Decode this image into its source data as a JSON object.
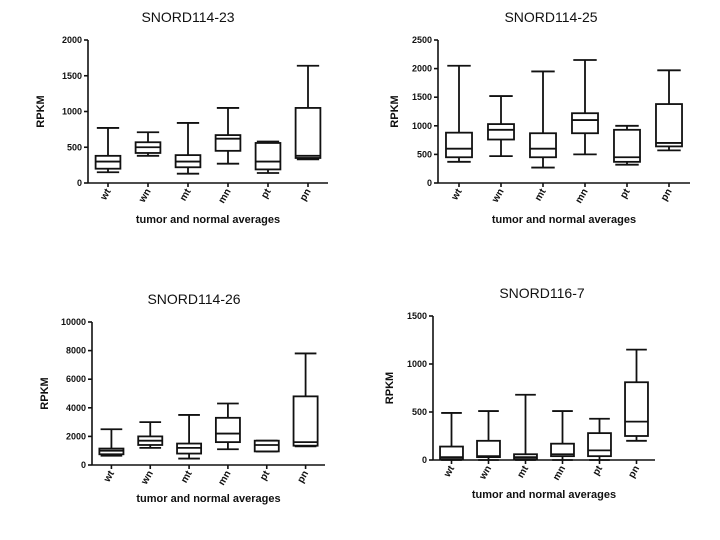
{
  "chart_data": [
    {
      "type": "boxplot",
      "title": "SNORD114-23",
      "xlabel": "tumor and normal averages",
      "ylabel": "RPKM",
      "ylim": [
        0,
        2000
      ],
      "yticks": [
        0,
        500,
        1000,
        1500,
        2000
      ],
      "categories": [
        "wt",
        "wn",
        "mt",
        "mn",
        "pt",
        "pn"
      ],
      "boxes": [
        {
          "min": 150,
          "q1": 200,
          "median": 300,
          "q3": 380,
          "max": 770
        },
        {
          "min": 380,
          "q1": 420,
          "median": 500,
          "q3": 570,
          "max": 710
        },
        {
          "min": 130,
          "q1": 220,
          "median": 300,
          "q3": 390,
          "max": 840
        },
        {
          "min": 270,
          "q1": 450,
          "median": 620,
          "q3": 670,
          "max": 1050
        },
        {
          "min": 140,
          "q1": 190,
          "median": 300,
          "q3": 560,
          "max": 580
        },
        {
          "min": 330,
          "q1": 350,
          "median": 380,
          "q3": 1050,
          "max": 1640
        }
      ]
    },
    {
      "type": "boxplot",
      "title": "SNORD114-25",
      "xlabel": "tumor and normal averages",
      "ylabel": "RPKM",
      "ylim": [
        0,
        2500
      ],
      "yticks": [
        0,
        500,
        1000,
        1500,
        2000,
        2500
      ],
      "categories": [
        "wt",
        "wn",
        "mt",
        "mn",
        "pt",
        "pn"
      ],
      "boxes": [
        {
          "min": 370,
          "q1": 450,
          "median": 600,
          "q3": 880,
          "max": 2050
        },
        {
          "min": 470,
          "q1": 760,
          "median": 930,
          "q3": 1030,
          "max": 1520
        },
        {
          "min": 270,
          "q1": 450,
          "median": 600,
          "q3": 870,
          "max": 1950
        },
        {
          "min": 500,
          "q1": 870,
          "median": 1100,
          "q3": 1220,
          "max": 2150
        },
        {
          "min": 320,
          "q1": 370,
          "median": 450,
          "q3": 930,
          "max": 1000
        },
        {
          "min": 570,
          "q1": 640,
          "median": 700,
          "q3": 1380,
          "max": 1970
        }
      ]
    },
    {
      "type": "boxplot",
      "title": "SNORD114-26",
      "xlabel": "tumor and normal averages",
      "ylabel": "RPKM",
      "ylim": [
        0,
        10000
      ],
      "yticks": [
        0,
        2000,
        4000,
        6000,
        8000,
        10000
      ],
      "categories": [
        "wt",
        "wn",
        "mt",
        "mn",
        "pt",
        "pn"
      ],
      "boxes": [
        {
          "min": 650,
          "q1": 750,
          "median": 1000,
          "q3": 1150,
          "max": 2500
        },
        {
          "min": 1200,
          "q1": 1400,
          "median": 1700,
          "q3": 2000,
          "max": 3000
        },
        {
          "min": 450,
          "q1": 800,
          "median": 1200,
          "q3": 1500,
          "max": 3500
        },
        {
          "min": 1100,
          "q1": 1600,
          "median": 2200,
          "q3": 3300,
          "max": 4300
        },
        {
          "min": 950,
          "q1": 950,
          "median": 1400,
          "q3": 1700,
          "max": 1700
        },
        {
          "min": 1300,
          "q1": 1350,
          "median": 1600,
          "q3": 4800,
          "max": 7800
        }
      ]
    },
    {
      "type": "boxplot",
      "title": "SNORD116-7",
      "xlabel": "tumor and normal averages",
      "ylabel": "RPKM",
      "ylim": [
        0,
        1500
      ],
      "yticks": [
        0,
        500,
        1000,
        1500
      ],
      "categories": [
        "wt",
        "wn",
        "mt",
        "mn",
        "pt",
        "pn"
      ],
      "boxes": [
        {
          "min": 0,
          "q1": 10,
          "median": 30,
          "q3": 140,
          "max": 490
        },
        {
          "min": 0,
          "q1": 30,
          "median": 40,
          "q3": 200,
          "max": 510
        },
        {
          "min": 0,
          "q1": 10,
          "median": 30,
          "q3": 60,
          "max": 680
        },
        {
          "min": 0,
          "q1": 40,
          "median": 60,
          "q3": 170,
          "max": 510
        },
        {
          "min": 0,
          "q1": 40,
          "median": 100,
          "q3": 280,
          "max": 430
        },
        {
          "min": 200,
          "q1": 250,
          "median": 400,
          "q3": 810,
          "max": 1150
        }
      ]
    }
  ]
}
